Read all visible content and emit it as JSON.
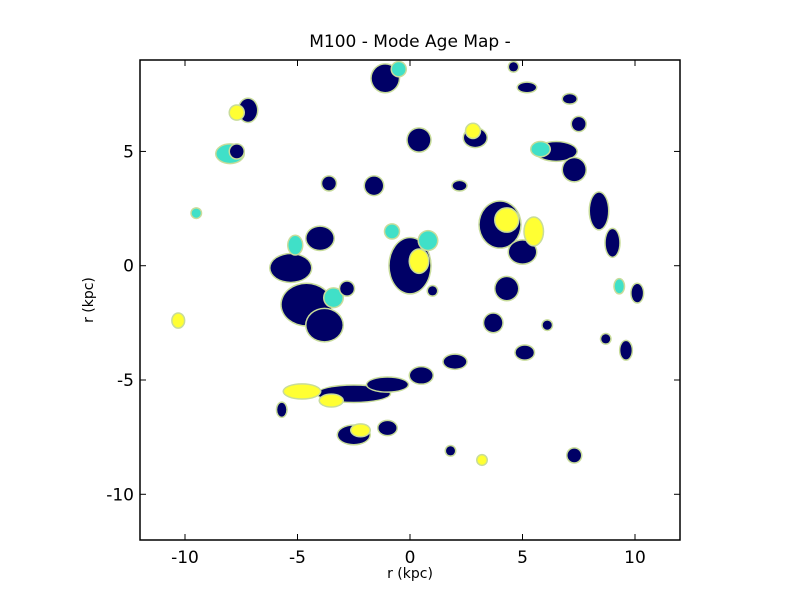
{
  "chart_data": {
    "type": "heatmap",
    "title": "M100 - Mode Age Map -",
    "xlabel": "r (kpc)",
    "ylabel": "r (kpc)",
    "xlim": [
      -12,
      12
    ],
    "ylim": [
      -12,
      9
    ],
    "xticks": [
      -10,
      -5,
      0,
      5,
      10
    ],
    "xtick_labels": [
      "-10",
      "-5",
      "0",
      "5",
      "10"
    ],
    "yticks": [
      -10,
      -5,
      0,
      5
    ],
    "ytick_labels": [
      "-10",
      "-5",
      "0",
      "5"
    ],
    "grid": false,
    "colors": {
      "oldest": "#000066",
      "old": "#0b1c7d",
      "intermediate": "#40e0c8",
      "young": "#ffff33",
      "edge": "#c8dc9a"
    },
    "regions": [
      {
        "x": 0,
        "y": 0,
        "rx": 0.9,
        "ry": 1.2,
        "color": "oldest"
      },
      {
        "x": 0.4,
        "y": 0.2,
        "rx": 0.4,
        "ry": 0.5,
        "color": "young"
      },
      {
        "x": 0.8,
        "y": 1.1,
        "rx": 0.4,
        "ry": 0.4,
        "color": "intermediate"
      },
      {
        "x": -5.3,
        "y": -0.1,
        "rx": 0.9,
        "ry": 0.6,
        "color": "oldest"
      },
      {
        "x": -4.6,
        "y": -1.7,
        "rx": 1.1,
        "ry": 0.9,
        "color": "oldest"
      },
      {
        "x": -3.8,
        "y": -2.6,
        "rx": 0.8,
        "ry": 0.7,
        "color": "oldest"
      },
      {
        "x": -3.4,
        "y": -1.4,
        "rx": 0.4,
        "ry": 0.4,
        "color": "intermediate"
      },
      {
        "x": -4.0,
        "y": 1.2,
        "rx": 0.6,
        "ry": 0.5,
        "color": "oldest"
      },
      {
        "x": -5.1,
        "y": 0.9,
        "rx": 0.3,
        "ry": 0.4,
        "color": "intermediate"
      },
      {
        "x": -2.5,
        "y": -5.6,
        "rx": 1.6,
        "ry": 0.35,
        "color": "oldest"
      },
      {
        "x": -4.8,
        "y": -5.5,
        "rx": 0.8,
        "ry": 0.3,
        "color": "young"
      },
      {
        "x": -1.0,
        "y": -5.2,
        "rx": 0.9,
        "ry": 0.3,
        "color": "oldest"
      },
      {
        "x": 0.5,
        "y": -4.8,
        "rx": 0.5,
        "ry": 0.35,
        "color": "oldest"
      },
      {
        "x": -3.5,
        "y": -5.9,
        "rx": 0.5,
        "ry": 0.25,
        "color": "young"
      },
      {
        "x": 4.0,
        "y": 1.8,
        "rx": 0.9,
        "ry": 1.0,
        "color": "oldest"
      },
      {
        "x": 4.3,
        "y": 2.0,
        "rx": 0.5,
        "ry": 0.5,
        "color": "young"
      },
      {
        "x": 5.0,
        "y": 0.6,
        "rx": 0.6,
        "ry": 0.5,
        "color": "oldest"
      },
      {
        "x": 5.5,
        "y": 1.5,
        "rx": 0.4,
        "ry": 0.6,
        "color": "young"
      },
      {
        "x": 4.3,
        "y": -1.0,
        "rx": 0.5,
        "ry": 0.5,
        "color": "oldest"
      },
      {
        "x": 3.7,
        "y": -2.5,
        "rx": 0.4,
        "ry": 0.4,
        "color": "oldest"
      },
      {
        "x": 6.5,
        "y": 5.0,
        "rx": 0.9,
        "ry": 0.4,
        "color": "oldest"
      },
      {
        "x": 7.3,
        "y": 4.2,
        "rx": 0.5,
        "ry": 0.5,
        "color": "oldest"
      },
      {
        "x": 8.4,
        "y": 2.4,
        "rx": 0.4,
        "ry": 0.8,
        "color": "oldest"
      },
      {
        "x": 9.0,
        "y": 1.0,
        "rx": 0.3,
        "ry": 0.6,
        "color": "oldest"
      },
      {
        "x": 10.1,
        "y": -1.2,
        "rx": 0.25,
        "ry": 0.4,
        "color": "oldest"
      },
      {
        "x": 5.8,
        "y": 5.1,
        "rx": 0.4,
        "ry": 0.3,
        "color": "intermediate"
      },
      {
        "x": -1.1,
        "y": 8.2,
        "rx": 0.6,
        "ry": 0.6,
        "color": "oldest"
      },
      {
        "x": -0.5,
        "y": 8.6,
        "rx": 0.3,
        "ry": 0.3,
        "color": "intermediate"
      },
      {
        "x": -7.2,
        "y": 6.8,
        "rx": 0.4,
        "ry": 0.5,
        "color": "oldest"
      },
      {
        "x": -7.7,
        "y": 6.7,
        "rx": 0.3,
        "ry": 0.3,
        "color": "young"
      },
      {
        "x": -8.0,
        "y": 4.9,
        "rx": 0.6,
        "ry": 0.4,
        "color": "intermediate"
      },
      {
        "x": -7.7,
        "y": 5.0,
        "rx": 0.3,
        "ry": 0.3,
        "color": "oldest"
      },
      {
        "x": -1.6,
        "y": 3.5,
        "rx": 0.4,
        "ry": 0.4,
        "color": "oldest"
      },
      {
        "x": 0.4,
        "y": 5.5,
        "rx": 0.5,
        "ry": 0.5,
        "color": "oldest"
      },
      {
        "x": 2.9,
        "y": 5.6,
        "rx": 0.5,
        "ry": 0.4,
        "color": "oldest"
      },
      {
        "x": 2.8,
        "y": 5.9,
        "rx": 0.3,
        "ry": 0.3,
        "color": "young"
      },
      {
        "x": 2.0,
        "y": -4.2,
        "rx": 0.5,
        "ry": 0.3,
        "color": "oldest"
      },
      {
        "x": 5.1,
        "y": -3.8,
        "rx": 0.4,
        "ry": 0.3,
        "color": "oldest"
      },
      {
        "x": 9.6,
        "y": -3.7,
        "rx": 0.25,
        "ry": 0.4,
        "color": "oldest"
      },
      {
        "x": -2.5,
        "y": -7.4,
        "rx": 0.7,
        "ry": 0.4,
        "color": "oldest"
      },
      {
        "x": -2.2,
        "y": -7.2,
        "rx": 0.4,
        "ry": 0.25,
        "color": "young"
      },
      {
        "x": -1.0,
        "y": -7.1,
        "rx": 0.4,
        "ry": 0.3,
        "color": "oldest"
      },
      {
        "x": -5.7,
        "y": -6.3,
        "rx": 0.2,
        "ry": 0.3,
        "color": "oldest"
      },
      {
        "x": -10.3,
        "y": -2.4,
        "rx": 0.25,
        "ry": 0.3,
        "color": "young"
      },
      {
        "x": -9.5,
        "y": 2.3,
        "rx": 0.2,
        "ry": 0.2,
        "color": "intermediate"
      },
      {
        "x": 7.3,
        "y": -8.3,
        "rx": 0.3,
        "ry": 0.3,
        "color": "oldest"
      },
      {
        "x": 3.2,
        "y": -8.5,
        "rx": 0.2,
        "ry": 0.2,
        "color": "young"
      },
      {
        "x": 1.8,
        "y": -8.1,
        "rx": 0.2,
        "ry": 0.2,
        "color": "oldest"
      },
      {
        "x": -3.6,
        "y": 3.6,
        "rx": 0.3,
        "ry": 0.3,
        "color": "oldest"
      },
      {
        "x": 7.1,
        "y": 7.3,
        "rx": 0.3,
        "ry": 0.2,
        "color": "oldest"
      },
      {
        "x": 5.2,
        "y": 7.8,
        "rx": 0.4,
        "ry": 0.2,
        "color": "oldest"
      },
      {
        "x": 4.6,
        "y": 8.7,
        "rx": 0.2,
        "ry": 0.2,
        "color": "oldest"
      },
      {
        "x": 7.5,
        "y": 6.2,
        "rx": 0.3,
        "ry": 0.3,
        "color": "oldest"
      },
      {
        "x": -0.8,
        "y": 1.5,
        "rx": 0.3,
        "ry": 0.3,
        "color": "intermediate"
      },
      {
        "x": -2.8,
        "y": -1.0,
        "rx": 0.3,
        "ry": 0.3,
        "color": "oldest"
      },
      {
        "x": 1.0,
        "y": -1.1,
        "rx": 0.2,
        "ry": 0.2,
        "color": "oldest"
      },
      {
        "x": 2.2,
        "y": 3.5,
        "rx": 0.3,
        "ry": 0.2,
        "color": "oldest"
      },
      {
        "x": 6.1,
        "y": -2.6,
        "rx": 0.2,
        "ry": 0.2,
        "color": "oldest"
      },
      {
        "x": 8.7,
        "y": -3.2,
        "rx": 0.2,
        "ry": 0.2,
        "color": "oldest"
      },
      {
        "x": 9.3,
        "y": -0.9,
        "rx": 0.2,
        "ry": 0.3,
        "color": "intermediate"
      }
    ]
  }
}
